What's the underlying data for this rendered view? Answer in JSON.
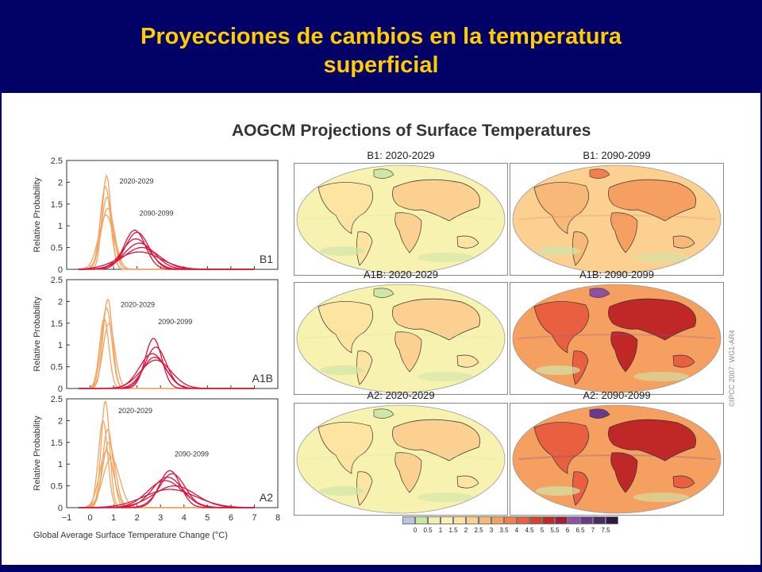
{
  "slide_title_line1": "Proyecciones de cambios en la temperatura",
  "slide_title_line2": "superficial",
  "figure_title": "AOGCM Projections of Surface Temperatures",
  "copyright": "©IPCC 2007: WG1-AR4",
  "colors": {
    "background": "#000066",
    "title": "#ffcc00",
    "near_term": "#f4a460",
    "long_term": "#dc143c"
  },
  "chart_data": [
    {
      "type": "line",
      "label": "B1",
      "xlabel": "",
      "ylabel": "Relative Probability",
      "xlim": [
        -1,
        8
      ],
      "ylim": [
        0,
        2.5
      ],
      "yticks": [
        "0",
        "0.5",
        "1",
        "1.5",
        "2",
        "2.5"
      ],
      "period_labels": [
        "2020-2029",
        "2090-2099"
      ],
      "series": [
        {
          "period": "2020-2029",
          "mean": 0.7,
          "sd": 0.19,
          "peak": 2.15
        },
        {
          "period": "2020-2029",
          "mean": 0.65,
          "sd": 0.22,
          "peak": 1.9
        },
        {
          "period": "2020-2029",
          "mean": 0.72,
          "sd": 0.25,
          "peak": 1.65
        },
        {
          "period": "2020-2029",
          "mean": 0.75,
          "sd": 0.29,
          "peak": 1.4
        },
        {
          "period": "2020-2029",
          "mean": 0.68,
          "sd": 0.32,
          "peak": 1.25
        },
        {
          "period": "2090-2099",
          "mean": 1.9,
          "sd": 0.45,
          "peak": 0.9
        },
        {
          "period": "2090-2099",
          "mean": 2.0,
          "sd": 0.5,
          "peak": 0.85
        },
        {
          "period": "2090-2099",
          "mean": 1.95,
          "sd": 0.58,
          "peak": 0.7
        },
        {
          "period": "2090-2099",
          "mean": 2.1,
          "sd": 0.65,
          "peak": 0.6
        },
        {
          "period": "2090-2099",
          "mean": 2.2,
          "sd": 0.75,
          "peak": 0.5
        },
        {
          "period": "2090-2099",
          "mean": 2.1,
          "sd": 0.9,
          "peak": 0.4
        }
      ]
    },
    {
      "type": "line",
      "label": "A1B",
      "xlabel": "",
      "ylabel": "Relative Probability",
      "xlim": [
        -1,
        8
      ],
      "ylim": [
        0,
        2.5
      ],
      "yticks": [
        "0",
        "0.5",
        "1",
        "1.5",
        "2",
        "2.5"
      ],
      "period_labels": [
        "2020-2029",
        "2090-2099"
      ],
      "series": [
        {
          "period": "2020-2029",
          "mean": 0.75,
          "sd": 0.2,
          "peak": 2.05
        },
        {
          "period": "2020-2029",
          "mean": 0.7,
          "sd": 0.22,
          "peak": 1.85
        },
        {
          "period": "2020-2029",
          "mean": 0.6,
          "sd": 0.2,
          "peak": 1.6
        },
        {
          "period": "2020-2029",
          "mean": 0.8,
          "sd": 0.25,
          "peak": 1.5
        },
        {
          "period": "2090-2099",
          "mean": 2.7,
          "sd": 0.35,
          "peak": 1.15
        },
        {
          "period": "2090-2099",
          "mean": 2.8,
          "sd": 0.45,
          "peak": 0.95
        },
        {
          "period": "2090-2099",
          "mean": 2.65,
          "sd": 0.55,
          "peak": 0.8
        },
        {
          "period": "2090-2099",
          "mean": 2.75,
          "sd": 0.5,
          "peak": 0.72
        },
        {
          "period": "2090-2099",
          "mean": 2.8,
          "sd": 0.65,
          "peak": 0.65
        }
      ]
    },
    {
      "type": "line",
      "label": "A2",
      "xlabel": "Global Average Surface Temperature Change (°C)",
      "ylabel": "Relative Probability",
      "xlim": [
        -1,
        8
      ],
      "ylim": [
        0,
        2.5
      ],
      "yticks": [
        "0",
        "0.5",
        "1",
        "1.5",
        "2",
        "2.5"
      ],
      "xticks": [
        "−1",
        "0",
        "1",
        "2",
        "3",
        "4",
        "5",
        "6",
        "7",
        "8"
      ],
      "period_labels": [
        "2020-2029",
        "2090-2099"
      ],
      "series": [
        {
          "period": "2020-2029",
          "mean": 0.65,
          "sd": 0.18,
          "peak": 2.45
        },
        {
          "period": "2020-2029",
          "mean": 0.55,
          "sd": 0.2,
          "peak": 2.0
        },
        {
          "period": "2020-2029",
          "mean": 0.75,
          "sd": 0.22,
          "peak": 1.8
        },
        {
          "period": "2020-2029",
          "mean": 0.8,
          "sd": 0.27,
          "peak": 1.5
        },
        {
          "period": "2020-2029",
          "mean": 0.7,
          "sd": 0.3,
          "peak": 1.3
        },
        {
          "period": "2020-2029",
          "mean": 0.9,
          "sd": 0.35,
          "peak": 1.15
        },
        {
          "period": "2090-2099",
          "mean": 3.4,
          "sd": 0.45,
          "peak": 0.85
        },
        {
          "period": "2090-2099",
          "mean": 3.5,
          "sd": 0.55,
          "peak": 0.78
        },
        {
          "period": "2090-2099",
          "mean": 3.3,
          "sd": 0.65,
          "peak": 0.7
        },
        {
          "period": "2090-2099",
          "mean": 3.2,
          "sd": 0.75,
          "peak": 0.62
        },
        {
          "period": "2090-2099",
          "mean": 3.6,
          "sd": 0.9,
          "peak": 0.5
        },
        {
          "period": "2090-2099",
          "mean": 3.4,
          "sd": 1.1,
          "peak": 0.42
        }
      ]
    },
    {
      "type": "heatmap",
      "maps": [
        {
          "title": "B1: 2020-2029",
          "scenario": "B1",
          "period": "2020-2029"
        },
        {
          "title": "B1: 2090-2099",
          "scenario": "B1",
          "period": "2090-2099"
        },
        {
          "title": "A1B: 2020-2029",
          "scenario": "A1B",
          "period": "2020-2029"
        },
        {
          "title": "A1B: 2090-2099",
          "scenario": "A1B",
          "period": "2090-2099"
        },
        {
          "title": "A2: 2020-2029",
          "scenario": "A2",
          "period": "2020-2029"
        },
        {
          "title": "A2: 2090-2099",
          "scenario": "A2",
          "period": "2090-2099"
        }
      ],
      "colorbar": {
        "labels": [
          "0",
          "0.5",
          "1",
          "1.5",
          "2",
          "2.5",
          "3",
          "3.5",
          "4",
          "4.5",
          "5",
          "5.5",
          "6",
          "6.5",
          "7",
          "7.5"
        ],
        "colors": [
          "#b8c4e0",
          "#c8e6a0",
          "#eef0b0",
          "#fff2b0",
          "#fde4a0",
          "#fbd090",
          "#f8b878",
          "#f5a060",
          "#f08050",
          "#e86040",
          "#d84030",
          "#c02828",
          "#a01e3c",
          "#9050a0",
          "#6a3a8a",
          "#4a2a60",
          "#2a1a40"
        ]
      }
    }
  ]
}
